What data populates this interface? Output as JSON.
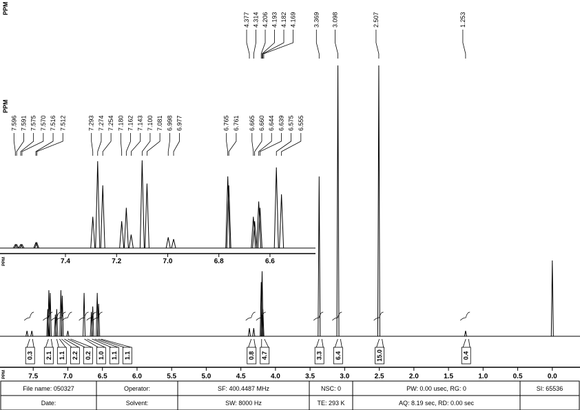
{
  "chart_data": {
    "type": "nmr",
    "main": {
      "axis_label": "PPM",
      "peak_header": "PPM",
      "xlim": [
        7.98,
        -0.4
      ],
      "xticks": [
        7.5,
        {
          "value": 7,
          "label": "7.0"
        },
        6.5,
        {
          "value": 6,
          "label": "6.0"
        },
        5.5,
        {
          "value": 5,
          "label": "5.0"
        },
        4.5,
        {
          "value": 4,
          "label": "4.0"
        },
        3.5,
        {
          "value": 3,
          "label": "3.0"
        },
        2.5,
        {
          "value": 2,
          "label": "2.0"
        },
        1.5,
        {
          "value": 1,
          "label": "1.0"
        },
        0.5,
        {
          "value": 0,
          "label": "0.0"
        }
      ],
      "peaks": [
        4.377,
        4.314,
        4.206,
        4.193,
        4.182,
        4.169,
        3.369,
        3.098,
        2.507,
        1.253
      ],
      "spectrum": {
        "ppm": [
          7.59,
          7.52,
          7.29,
          7.274,
          7.254,
          7.18,
          7.16,
          7.1,
          7.08,
          7.0,
          6.765,
          6.66,
          6.64,
          6.575,
          6.555,
          4.377,
          4.314,
          4.206,
          4.193,
          4.182,
          3.369,
          3.098,
          2.507,
          1.253,
          0.0
        ],
        "height": [
          2,
          2,
          10,
          17,
          16,
          8,
          10,
          17,
          15,
          2,
          16,
          9,
          11,
          16,
          12,
          3,
          3,
          20,
          24,
          10,
          59,
          100,
          100,
          2,
          28
        ]
      },
      "integrals": [
        {
          "ppm": 7.55,
          "value": 0.3
        },
        {
          "ppm": 7.28,
          "value": 2.1
        },
        {
          "ppm": 7.16,
          "value": 1.1
        },
        {
          "ppm": 7.09,
          "value": 2.2
        },
        {
          "ppm": 7.0,
          "value": 0.2
        },
        {
          "ppm": 6.76,
          "value": 1,
          "label": "1.0"
        },
        {
          "ppm": 6.65,
          "value": 1.1
        },
        {
          "ppm": 6.56,
          "value": 1.1
        },
        {
          "ppm": 4.35,
          "value": 0.8
        },
        {
          "ppm": 4.2,
          "value": 4.7
        },
        {
          "ppm": 3.37,
          "value": 3.3
        },
        {
          "ppm": 3.1,
          "value": 6.4
        },
        {
          "ppm": 2.5,
          "value": 15,
          "label": "15.0"
        },
        {
          "ppm": 1.25,
          "value": 0.4
        }
      ]
    },
    "inset": {
      "axis_label": "PPM",
      "peak_header": "PPM",
      "xlim": [
        7.656,
        6.422
      ],
      "xticks": [
        7.4,
        7.2,
        {
          "value": 7,
          "label": "7.0"
        },
        6.8,
        6.6
      ],
      "peaks": [
        7.596,
        7.591,
        7.575,
        {
          "value": 7.57,
          "label": "7.570"
        },
        7.516,
        7.512,
        7.293,
        7.274,
        7.254,
        {
          "value": 7.18,
          "label": "7.180"
        },
        7.162,
        7.143,
        {
          "value": 7.1,
          "label": "7.100"
        },
        7.081,
        6.998,
        6.977,
        6.765,
        6.761,
        6.665,
        {
          "value": 6.66,
          "label": "6.660"
        },
        6.644,
        6.639,
        6.575,
        6.555
      ],
      "heights": [
        4,
        4,
        4,
        4,
        6,
        6,
        35,
        97,
        70,
        30,
        45,
        15,
        98,
        72,
        12,
        10,
        80,
        70,
        35,
        30,
        52,
        45,
        90,
        60
      ]
    }
  },
  "footer": {
    "rows": [
      [
        "File name: 050327",
        "Operator:",
        "SF: 400.4487 MHz",
        "NSC: 0",
        "PW: 0.00 usec, RG: 0",
        "SI: 65536"
      ],
      [
        "Date:",
        "Solvent:",
        "SW: 8000 Hz",
        "TE: 293 K",
        "AQ: 8.19 sec, RD: 0.00 sec"
      ]
    ]
  }
}
